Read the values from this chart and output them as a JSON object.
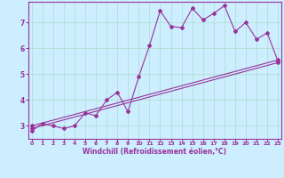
{
  "xlabel": "Windchill (Refroidissement éolien,°C)",
  "x_ticks": [
    0,
    1,
    2,
    3,
    4,
    5,
    6,
    7,
    8,
    9,
    10,
    11,
    12,
    13,
    14,
    15,
    16,
    17,
    18,
    19,
    20,
    21,
    22,
    23
  ],
  "y_ticks": [
    3,
    4,
    5,
    6,
    7
  ],
  "ylim": [
    2.5,
    7.8
  ],
  "xlim": [
    -0.3,
    23.3
  ],
  "background_color": "#cceeff",
  "line_color": "#993399",
  "grid_color": "#aaddcc",
  "line1_x": [
    0,
    1,
    2,
    3,
    4,
    5,
    6,
    7,
    8,
    9,
    10,
    11,
    12,
    13,
    14,
    15,
    16,
    17,
    18,
    19,
    20,
    21,
    22,
    23
  ],
  "line1_y": [
    2.8,
    3.1,
    3.0,
    2.9,
    3.0,
    3.5,
    3.4,
    4.0,
    4.3,
    3.55,
    4.9,
    6.1,
    7.45,
    6.85,
    6.8,
    7.55,
    7.1,
    7.35,
    7.65,
    6.65,
    7.0,
    6.35,
    6.6,
    5.5
  ],
  "line2_x": [
    0,
    23
  ],
  "line2_y": [
    2.9,
    5.45
  ],
  "line3_x": [
    0,
    23
  ],
  "line3_y": [
    3.0,
    5.55
  ]
}
